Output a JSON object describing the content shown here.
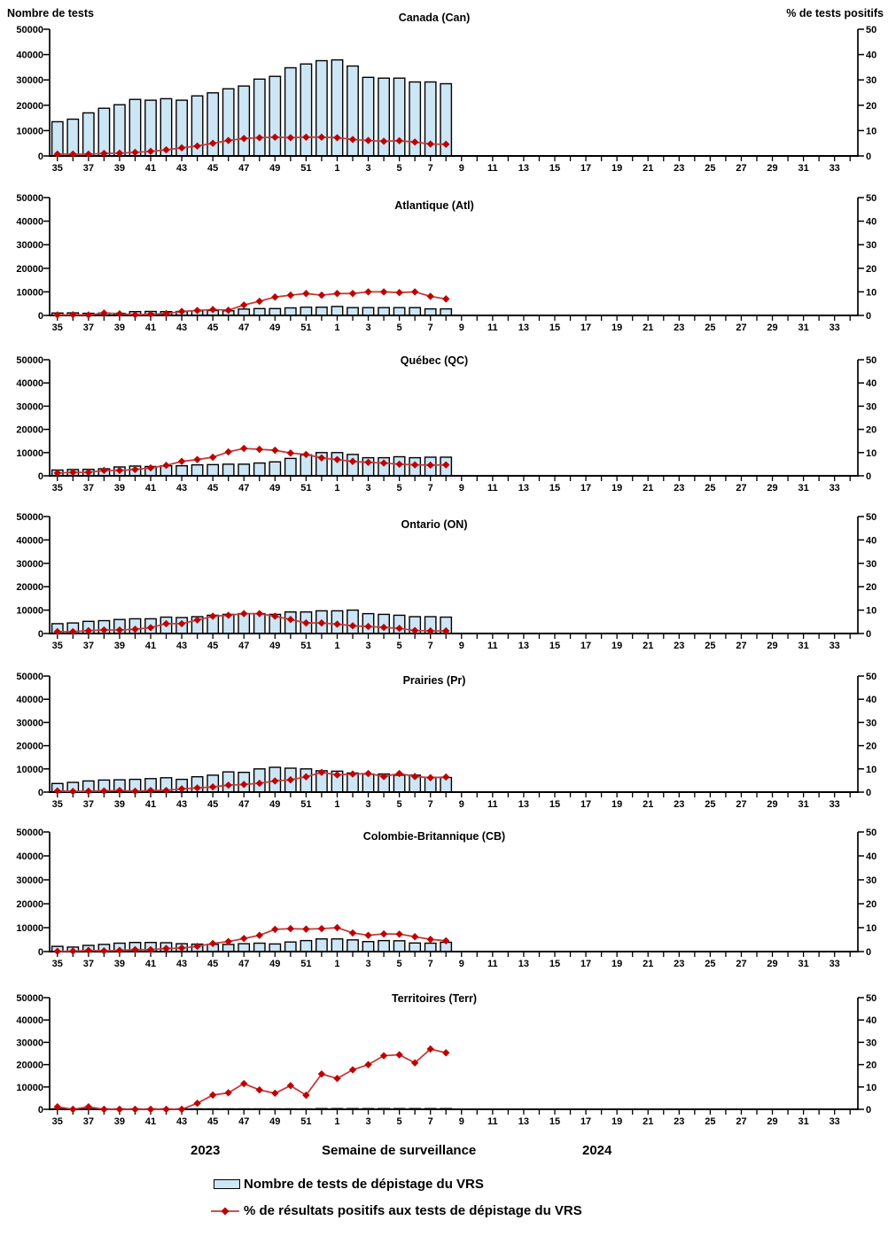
{
  "figure": {
    "left_axis_title": "Nombre de tests",
    "right_axis_title": "% de tests positifs",
    "x_axis_title": "Semaine de surveillance",
    "year_left": "2023",
    "year_right": "2024",
    "legend": {
      "bar_label": "Nombre de tests de dépistage du VRS",
      "line_label": "% de résultats positifs aux tests de dépistage du VRS"
    },
    "colors": {
      "bar_fill": "#CDE6F5",
      "bar_border": "#000000",
      "line": "#C43B3B",
      "marker": "#C00000",
      "axis": "#000000"
    }
  },
  "x_axis": {
    "categories": [
      "35",
      "36",
      "37",
      "38",
      "39",
      "40",
      "41",
      "42",
      "43",
      "44",
      "45",
      "46",
      "47",
      "48",
      "49",
      "50",
      "51",
      "52",
      "1",
      "2",
      "3",
      "4",
      "5",
      "6",
      "7",
      "8",
      "9",
      "10",
      "11",
      "12",
      "13",
      "14",
      "15",
      "16",
      "17",
      "18",
      "19",
      "20",
      "21",
      "22",
      "23",
      "24",
      "25",
      "26",
      "27",
      "28",
      "29",
      "30",
      "31",
      "32",
      "33",
      "34"
    ],
    "label_every": 2,
    "data_weeks_count": 26
  },
  "y_axis": {
    "left_ticks": [
      0,
      10000,
      20000,
      30000,
      40000,
      50000
    ],
    "right_ticks": [
      0,
      10,
      20,
      30,
      40,
      50
    ],
    "ylim_left": [
      0,
      50000
    ],
    "ylim_right": [
      0,
      50
    ]
  },
  "chart_data": [
    {
      "type": "bar+line",
      "id": "canada",
      "title": "Canada (Can)",
      "bars": [
        13500,
        14500,
        17000,
        18800,
        20200,
        22300,
        22000,
        22600,
        22000,
        23700,
        24900,
        26500,
        27600,
        30300,
        31400,
        34800,
        36300,
        37600,
        37900,
        35500,
        31000,
        30700,
        30700,
        29200,
        29200,
        28500
      ],
      "pct": [
        0.7,
        0.7,
        0.7,
        1.0,
        1.1,
        1.4,
        1.8,
        2.4,
        3.2,
        3.9,
        5.0,
        6.1,
        6.9,
        7.2,
        7.4,
        7.2,
        7.4,
        7.4,
        7.2,
        6.5,
        6.1,
        5.8,
        6.0,
        5.5,
        4.7,
        4.6
      ]
    },
    {
      "type": "bar+line",
      "id": "atlantique",
      "title": "Atlantique (Atl)",
      "bars": [
        1000,
        1100,
        900,
        1000,
        900,
        1600,
        1700,
        1600,
        1700,
        2000,
        2100,
        2000,
        2700,
        2900,
        2900,
        3200,
        3500,
        3500,
        3800,
        3300,
        3300,
        3300,
        3300,
        3300,
        2800,
        2800
      ],
      "pct": [
        0.2,
        0.3,
        0.2,
        1.0,
        0.7,
        0.3,
        0.5,
        0.8,
        1.7,
        2.1,
        2.5,
        2.2,
        4.4,
        6.0,
        7.8,
        8.6,
        9.3,
        8.6,
        9.3,
        9.3,
        10.0,
        10.0,
        9.7,
        10.0,
        8.1,
        7.0
      ]
    },
    {
      "type": "bar+line",
      "id": "quebec",
      "title": "Québec (QC)",
      "bars": [
        2500,
        2700,
        2800,
        3000,
        3800,
        4200,
        4000,
        4300,
        4300,
        4700,
        4800,
        5000,
        5000,
        5500,
        6000,
        7500,
        9000,
        10000,
        10000,
        9200,
        7800,
        7800,
        8200,
        7800,
        8000,
        8000
      ],
      "pct": [
        1.2,
        1.5,
        1.5,
        2.3,
        2.3,
        2.7,
        3.4,
        4.5,
        6.2,
        7.0,
        8.0,
        10.3,
        11.8,
        11.4,
        11.0,
        9.8,
        9.2,
        7.7,
        7.0,
        6.2,
        5.8,
        5.5,
        5.0,
        4.7,
        4.6,
        4.7
      ]
    },
    {
      "type": "bar+line",
      "id": "ontario",
      "title": "Ontario (ON)",
      "bars": [
        4200,
        4500,
        5200,
        5500,
        6000,
        6300,
        6300,
        7000,
        6800,
        7200,
        7800,
        8200,
        8500,
        8500,
        8200,
        9200,
        9200,
        9700,
        9700,
        10000,
        8500,
        8200,
        7800,
        7200,
        7200,
        7000
      ],
      "pct": [
        0.8,
        0.8,
        1.2,
        1.5,
        1.5,
        1.8,
        2.5,
        4.2,
        4.2,
        5.8,
        7.4,
        7.8,
        8.5,
        8.5,
        7.4,
        6.0,
        4.5,
        4.5,
        4.0,
        3.3,
        3.0,
        2.6,
        2.2,
        1.3,
        1.1,
        1.1
      ]
    },
    {
      "type": "bar+line",
      "id": "prairies",
      "title": "Prairies (Pr)",
      "bars": [
        3700,
        4200,
        4800,
        5200,
        5300,
        5500,
        5800,
        6200,
        5500,
        6600,
        7300,
        8700,
        8500,
        10000,
        10700,
        10300,
        10000,
        9200,
        9000,
        8200,
        7800,
        7800,
        7300,
        7300,
        6400,
        6300
      ],
      "pct": [
        0.5,
        0.3,
        0.4,
        0.5,
        0.7,
        0.4,
        0.7,
        0.7,
        1.4,
        1.8,
        2.2,
        3.0,
        3.3,
        3.8,
        4.8,
        5.3,
        6.6,
        8.5,
        7.4,
        7.8,
        8.0,
        6.7,
        8.0,
        6.7,
        6.2,
        6.5
      ]
    },
    {
      "type": "bar+line",
      "id": "colombie-britannique",
      "title": "Colombie-Britannique (CB)",
      "bars": [
        2200,
        1900,
        2600,
        3000,
        3500,
        3800,
        3800,
        3700,
        3300,
        3100,
        3000,
        3000,
        3300,
        3500,
        3200,
        4000,
        4600,
        5300,
        5300,
        4900,
        4200,
        4600,
        4500,
        3600,
        3500,
        3900
      ],
      "pct": [
        0.1,
        0.2,
        0.5,
        0.3,
        0.5,
        0.8,
        0.8,
        1.3,
        1.5,
        2.2,
        3.4,
        4.2,
        5.5,
        6.8,
        9.3,
        9.6,
        9.4,
        9.6,
        10.0,
        7.8,
        6.8,
        7.4,
        7.3,
        6.2,
        5.1,
        4.5
      ]
    },
    {
      "type": "bar+line",
      "id": "territoires",
      "title": "Territoires (Terr)",
      "bars": [
        100,
        100,
        100,
        100,
        100,
        100,
        100,
        100,
        100,
        100,
        200,
        200,
        200,
        200,
        200,
        200,
        200,
        300,
        300,
        300,
        300,
        300,
        300,
        300,
        300,
        300
      ],
      "pct": [
        1.1,
        0.0,
        1.1,
        0.0,
        0.0,
        0.0,
        0.0,
        0.0,
        0.0,
        2.7,
        6.4,
        7.4,
        11.5,
        8.7,
        7.2,
        10.6,
        6.3,
        15.8,
        13.8,
        17.7,
        20.0,
        24.0,
        24.4,
        20.8,
        27.0,
        25.3
      ]
    }
  ]
}
